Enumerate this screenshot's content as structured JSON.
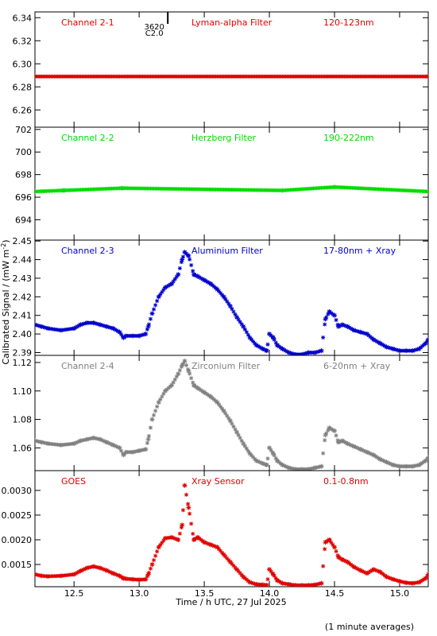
{
  "x_axis": {
    "label": "Time / h UTC, 27 Jul 2025",
    "range": [
      12.2,
      15.22
    ],
    "ticks": [
      12.5,
      13.0,
      13.5,
      14.0,
      14.5,
      15.0
    ],
    "tick_labels": [
      "12.5",
      "13.0",
      "13.5",
      "14.0",
      "14.5",
      "15.0"
    ]
  },
  "y_axis_label": "Calibrated Signal / (mW m",
  "y_axis_label_sup": "-2",
  "y_axis_label_end": ")",
  "footnote": "(1 minute averages)",
  "flare_marker": {
    "time": 13.22,
    "region": "3620",
    "class": "C2.0"
  },
  "colors": {
    "red": "#e00000",
    "green": "#00dd00",
    "blue": "#0000cc",
    "gray": "#808080",
    "axis": "#000000"
  },
  "chart_data": [
    {
      "type": "scatter",
      "channel": "Channel 2-1",
      "filter": "Lyman-alpha Filter",
      "band": "120-123nm",
      "color": "#e00000",
      "ylim": [
        6.245,
        6.345
      ],
      "yticks": [
        6.26,
        6.28,
        6.3,
        6.32,
        6.34
      ],
      "ytick_labels": [
        "6.26",
        "6.28",
        "6.30",
        "6.32",
        "6.34"
      ],
      "series": [
        {
          "x": [
            12.2,
            15.22
          ],
          "y": [
            6.289,
            6.289
          ]
        }
      ]
    },
    {
      "type": "scatter",
      "channel": "Channel 2-2",
      "filter": "Herzberg Filter",
      "band": "190-222nm",
      "color": "#00dd00",
      "ylim": [
        692.2,
        702.2
      ],
      "yticks": [
        694,
        696,
        698,
        700,
        702
      ],
      "ytick_labels": [
        "694",
        "696",
        "698",
        "700",
        "702"
      ],
      "series": [
        {
          "x": [
            12.2,
            12.42,
            12.87,
            14.1,
            14.5,
            15.22
          ],
          "y": [
            696.5,
            696.6,
            696.8,
            696.6,
            696.9,
            696.5
          ]
        }
      ]
    },
    {
      "type": "scatter",
      "channel": "Channel 2-3",
      "filter": "Aluminium Filter",
      "band": "17-80nm + Xray",
      "band_sup": "",
      "color": "#0000cc",
      "ylim": [
        2.3885,
        2.4505
      ],
      "yticks": [
        2.39,
        2.4,
        2.41,
        2.42,
        2.43,
        2.44,
        2.45
      ],
      "ytick_labels": [
        "2.39",
        "2.40",
        "2.41",
        "2.42",
        "2.43",
        "2.44",
        "2.45"
      ],
      "series": [
        {
          "x": [
            12.2,
            12.25,
            12.3,
            12.4,
            12.5,
            12.55,
            12.6,
            12.65,
            12.7,
            12.75,
            12.8,
            12.85,
            12.88,
            12.9,
            12.95,
            13.0,
            13.05,
            13.07,
            13.1,
            13.15,
            13.2,
            13.25,
            13.3,
            13.33,
            13.35,
            13.38,
            13.42,
            13.45,
            13.5,
            13.55,
            13.6,
            13.65,
            13.7,
            13.75,
            13.8,
            13.85,
            13.9,
            13.95,
            13.98,
            14.0,
            14.03,
            14.06,
            14.1,
            14.15,
            14.2,
            14.25,
            14.3,
            14.35,
            14.4,
            14.43,
            14.46,
            14.5,
            14.53,
            14.56,
            14.6,
            14.65,
            14.7,
            14.75,
            14.8,
            14.85,
            14.9,
            14.95,
            15.0,
            15.05,
            15.1,
            15.15,
            15.2,
            15.22
          ],
          "y": [
            2.405,
            2.404,
            2.403,
            2.402,
            2.403,
            2.405,
            2.406,
            2.406,
            2.405,
            2.404,
            2.403,
            2.401,
            2.398,
            2.399,
            2.399,
            2.399,
            2.4,
            2.404,
            2.411,
            2.42,
            2.425,
            2.427,
            2.432,
            2.44,
            2.444,
            2.442,
            2.432,
            2.431,
            2.429,
            2.427,
            2.424,
            2.42,
            2.415,
            2.409,
            2.404,
            2.398,
            2.394,
            2.392,
            2.391,
            2.4,
            2.398,
            2.394,
            2.392,
            2.39,
            2.389,
            2.389,
            2.39,
            2.39,
            2.391,
            2.408,
            2.412,
            2.41,
            2.404,
            2.405,
            2.404,
            2.402,
            2.401,
            2.4,
            2.397,
            2.395,
            2.393,
            2.392,
            2.391,
            2.391,
            2.391,
            2.392,
            2.395,
            2.397
          ]
        }
      ]
    },
    {
      "type": "scatter",
      "channel": "Channel 2-4",
      "filter": "Zirconium Filter",
      "band": "6-20nm + Xray",
      "color": "#808080",
      "ylim": [
        1.044,
        1.125
      ],
      "yticks": [
        1.06,
        1.08,
        1.1,
        1.12
      ],
      "ytick_labels": [
        "1.06",
        "1.08",
        "1.10",
        "1.12"
      ],
      "series": [
        {
          "x": [
            12.2,
            12.25,
            12.3,
            12.4,
            12.5,
            12.55,
            12.6,
            12.65,
            12.7,
            12.75,
            12.8,
            12.85,
            12.88,
            12.9,
            12.95,
            13.0,
            13.05,
            13.07,
            13.1,
            13.15,
            13.2,
            13.25,
            13.3,
            13.33,
            13.35,
            13.38,
            13.42,
            13.45,
            13.5,
            13.55,
            13.6,
            13.65,
            13.7,
            13.75,
            13.8,
            13.85,
            13.9,
            13.95,
            13.98,
            14.0,
            14.03,
            14.06,
            14.1,
            14.15,
            14.2,
            14.25,
            14.3,
            14.35,
            14.4,
            14.43,
            14.46,
            14.5,
            14.53,
            14.56,
            14.6,
            14.65,
            14.7,
            14.75,
            14.8,
            14.85,
            14.9,
            14.95,
            15.0,
            15.05,
            15.1,
            15.15,
            15.2,
            15.22
          ],
          "y": [
            1.065,
            1.064,
            1.063,
            1.062,
            1.063,
            1.065,
            1.066,
            1.067,
            1.066,
            1.064,
            1.062,
            1.06,
            1.055,
            1.057,
            1.057,
            1.058,
            1.059,
            1.066,
            1.08,
            1.092,
            1.1,
            1.104,
            1.112,
            1.118,
            1.121,
            1.114,
            1.104,
            1.102,
            1.099,
            1.096,
            1.092,
            1.086,
            1.079,
            1.071,
            1.063,
            1.056,
            1.051,
            1.049,
            1.048,
            1.06,
            1.056,
            1.051,
            1.048,
            1.046,
            1.045,
            1.045,
            1.045,
            1.046,
            1.047,
            1.069,
            1.074,
            1.072,
            1.064,
            1.065,
            1.063,
            1.061,
            1.059,
            1.057,
            1.055,
            1.052,
            1.05,
            1.048,
            1.047,
            1.047,
            1.047,
            1.048,
            1.051,
            1.053
          ]
        }
      ]
    },
    {
      "type": "scatter",
      "channel": "GOES",
      "filter": "Xray Sensor",
      "band": "0.1-0.8nm",
      "color": "#e00000",
      "ylim": [
        0.00105,
        0.0034
      ],
      "yticks": [
        0.0015,
        0.002,
        0.0025,
        0.003
      ],
      "ytick_labels": [
        "0.0015",
        "0.0020",
        "0.0025",
        "0.0030"
      ],
      "series": [
        {
          "x": [
            12.2,
            12.25,
            12.3,
            12.4,
            12.5,
            12.55,
            12.6,
            12.65,
            12.7,
            12.75,
            12.8,
            12.85,
            12.88,
            12.9,
            12.95,
            13.0,
            13.05,
            13.07,
            13.1,
            13.15,
            13.2,
            13.25,
            13.3,
            13.33,
            13.35,
            13.38,
            13.42,
            13.45,
            13.5,
            13.55,
            13.6,
            13.65,
            13.7,
            13.75,
            13.8,
            13.85,
            13.9,
            13.95,
            13.98,
            14.0,
            14.03,
            14.06,
            14.1,
            14.15,
            14.2,
            14.25,
            14.3,
            14.35,
            14.4,
            14.43,
            14.46,
            14.5,
            14.53,
            14.56,
            14.6,
            14.65,
            14.7,
            14.75,
            14.8,
            14.85,
            14.9,
            14.95,
            15.0,
            15.05,
            15.1,
            15.15,
            15.2,
            15.22
          ],
          "y": [
            0.0013,
            0.00127,
            0.00126,
            0.00127,
            0.0013,
            0.00137,
            0.00143,
            0.00146,
            0.00143,
            0.00138,
            0.00132,
            0.00127,
            0.00122,
            0.00121,
            0.0012,
            0.00119,
            0.0012,
            0.0013,
            0.0015,
            0.00185,
            0.00203,
            0.00205,
            0.002,
            0.0023,
            0.0031,
            0.00265,
            0.002,
            0.00205,
            0.00195,
            0.0019,
            0.00185,
            0.0017,
            0.00155,
            0.0014,
            0.00125,
            0.00114,
            0.0011,
            0.00109,
            0.00108,
            0.0014,
            0.0013,
            0.00118,
            0.00112,
            0.0011,
            0.00108,
            0.00108,
            0.00108,
            0.00109,
            0.00112,
            0.00195,
            0.002,
            0.00185,
            0.00165,
            0.0016,
            0.00155,
            0.00145,
            0.00138,
            0.00132,
            0.0014,
            0.00135,
            0.00125,
            0.0012,
            0.00116,
            0.00113,
            0.00112,
            0.00114,
            0.00122,
            0.0013
          ]
        }
      ]
    }
  ]
}
